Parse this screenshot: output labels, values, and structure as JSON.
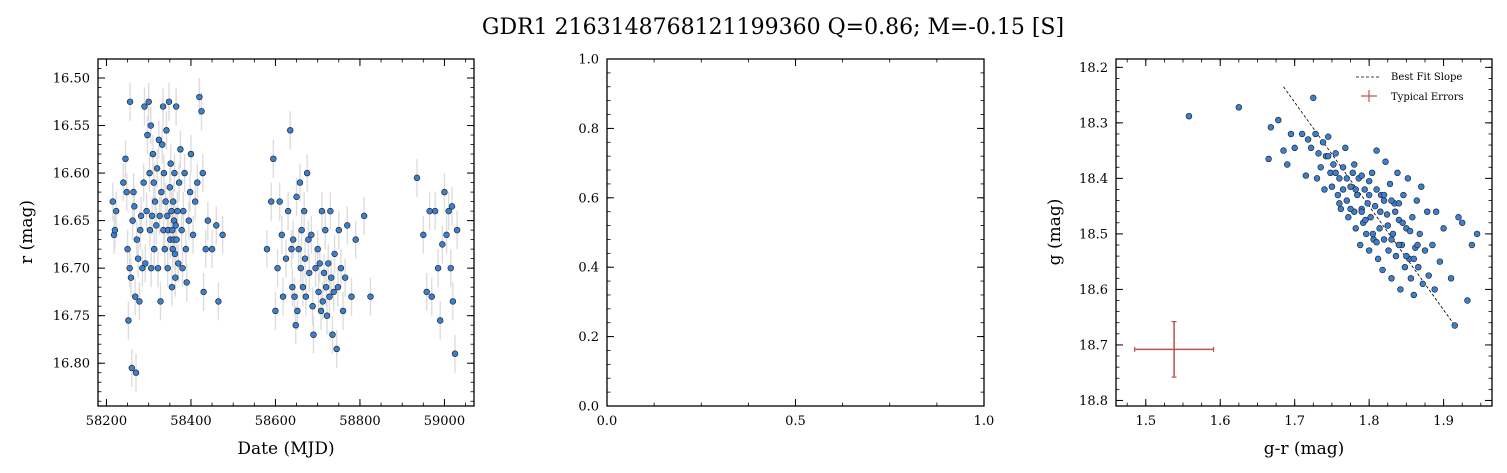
{
  "figure": {
    "title": "GDR1 2163148768121199360  Q=0.86; M=-0.15 [S]"
  },
  "chart_data": [
    {
      "type": "scatter",
      "panel": "lightcurve",
      "xlabel": "Date (MJD)",
      "ylabel": "r (mag)",
      "xlim": [
        58180,
        59070
      ],
      "ylim": [
        16.845,
        16.48
      ],
      "y_inverted": true,
      "xticks": [
        58200,
        58400,
        58600,
        58800,
        59000
      ],
      "xtick_labels": [
        "58200",
        "58400",
        "58600",
        "58800",
        "59000"
      ],
      "yticks": [
        16.5,
        16.55,
        16.6,
        16.65,
        16.7,
        16.75,
        16.8
      ],
      "ytick_labels": [
        "16.50",
        "16.55",
        "16.60",
        "16.65",
        "16.70",
        "16.75",
        "16.80"
      ],
      "marker_color": "#3b7fd0",
      "errorbar_color": "#dddddd",
      "grid": false,
      "points": [
        [
          58215,
          16.63
        ],
        [
          58218,
          16.665
        ],
        [
          58220,
          16.66
        ],
        [
          58223,
          16.64
        ],
        [
          58240,
          16.61
        ],
        [
          58245,
          16.585
        ],
        [
          58248,
          16.62
        ],
        [
          58250,
          16.68
        ],
        [
          58252,
          16.755
        ],
        [
          58255,
          16.7
        ],
        [
          58256,
          16.525
        ],
        [
          58258,
          16.71
        ],
        [
          58260,
          16.805
        ],
        [
          58262,
          16.65
        ],
        [
          58264,
          16.62
        ],
        [
          58266,
          16.635
        ],
        [
          58268,
          16.73
        ],
        [
          58270,
          16.81
        ],
        [
          58272,
          16.67
        ],
        [
          58275,
          16.69
        ],
        [
          58278,
          16.735
        ],
        [
          58280,
          16.66
        ],
        [
          58282,
          16.645
        ],
        [
          58285,
          16.7
        ],
        [
          58288,
          16.61
        ],
        [
          58290,
          16.53
        ],
        [
          58292,
          16.695
        ],
        [
          58295,
          16.64
        ],
        [
          58297,
          16.56
        ],
        [
          58300,
          16.525
        ],
        [
          58302,
          16.6
        ],
        [
          58303,
          16.66
        ],
        [
          58305,
          16.55
        ],
        [
          58306,
          16.7
        ],
        [
          58308,
          16.645
        ],
        [
          58310,
          16.58
        ],
        [
          58312,
          16.61
        ],
        [
          58313,
          16.68
        ],
        [
          58315,
          16.63
        ],
        [
          58318,
          16.655
        ],
        [
          58320,
          16.595
        ],
        [
          58322,
          16.7
        ],
        [
          58324,
          16.565
        ],
        [
          58326,
          16.645
        ],
        [
          58328,
          16.735
        ],
        [
          58330,
          16.62
        ],
        [
          58332,
          16.57
        ],
        [
          58334,
          16.53
        ],
        [
          58335,
          16.66
        ],
        [
          58336,
          16.6
        ],
        [
          58338,
          16.68
        ],
        [
          58340,
          16.63
        ],
        [
          58342,
          16.555
        ],
        [
          58344,
          16.645
        ],
        [
          58345,
          16.7
        ],
        [
          58346,
          16.66
        ],
        [
          58348,
          16.525
        ],
        [
          58350,
          16.615
        ],
        [
          58351,
          16.67
        ],
        [
          58352,
          16.59
        ],
        [
          58354,
          16.64
        ],
        [
          58355,
          16.72
        ],
        [
          58356,
          16.66
        ],
        [
          58357,
          16.68
        ],
        [
          58358,
          16.63
        ],
        [
          58359,
          16.67
        ],
        [
          58360,
          16.65
        ],
        [
          58361,
          16.6
        ],
        [
          58362,
          16.685
        ],
        [
          58363,
          16.71
        ],
        [
          58364,
          16.655
        ],
        [
          58365,
          16.53
        ],
        [
          58366,
          16.67
        ],
        [
          58368,
          16.64
        ],
        [
          58370,
          16.695
        ],
        [
          58372,
          16.61
        ],
        [
          58375,
          16.575
        ],
        [
          58378,
          16.66
        ],
        [
          58380,
          16.7
        ],
        [
          58382,
          16.64
        ],
        [
          58385,
          16.6
        ],
        [
          58388,
          16.68
        ],
        [
          58390,
          16.715
        ],
        [
          58395,
          16.65
        ],
        [
          58398,
          16.62
        ],
        [
          58400,
          16.58
        ],
        [
          58405,
          16.665
        ],
        [
          58410,
          16.63
        ],
        [
          58415,
          16.61
        ],
        [
          58420,
          16.52
        ],
        [
          58425,
          16.535
        ],
        [
          58428,
          16.6
        ],
        [
          58430,
          16.725
        ],
        [
          58435,
          16.68
        ],
        [
          58440,
          16.65
        ],
        [
          58450,
          16.68
        ],
        [
          58460,
          16.655
        ],
        [
          58465,
          16.735
        ],
        [
          58475,
          16.665
        ],
        [
          58580,
          16.68
        ],
        [
          58590,
          16.63
        ],
        [
          58595,
          16.585
        ],
        [
          58600,
          16.745
        ],
        [
          58605,
          16.7
        ],
        [
          58610,
          16.63
        ],
        [
          58615,
          16.665
        ],
        [
          58618,
          16.73
        ],
        [
          58625,
          16.69
        ],
        [
          58630,
          16.64
        ],
        [
          58635,
          16.555
        ],
        [
          58638,
          16.68
        ],
        [
          58640,
          16.72
        ],
        [
          58642,
          16.67
        ],
        [
          58645,
          16.73
        ],
        [
          58648,
          16.76
        ],
        [
          58650,
          16.625
        ],
        [
          58652,
          16.745
        ],
        [
          58655,
          16.68
        ],
        [
          58658,
          16.61
        ],
        [
          58660,
          16.7
        ],
        [
          58662,
          16.66
        ],
        [
          58665,
          16.72
        ],
        [
          58668,
          16.64
        ],
        [
          58670,
          16.69
        ],
        [
          58672,
          16.73
        ],
        [
          58675,
          16.6
        ],
        [
          58678,
          16.67
        ],
        [
          58680,
          16.705
        ],
        [
          58685,
          16.665
        ],
        [
          58688,
          16.74
        ],
        [
          58690,
          16.77
        ],
        [
          58695,
          16.7
        ],
        [
          58700,
          16.68
        ],
        [
          58702,
          16.725
        ],
        [
          58705,
          16.695
        ],
        [
          58708,
          16.745
        ],
        [
          58710,
          16.64
        ],
        [
          58712,
          16.735
        ],
        [
          58715,
          16.705
        ],
        [
          58718,
          16.66
        ],
        [
          58720,
          16.72
        ],
        [
          58722,
          16.75
        ],
        [
          58725,
          16.695
        ],
        [
          58728,
          16.73
        ],
        [
          58730,
          16.64
        ],
        [
          58732,
          16.71
        ],
        [
          58735,
          16.77
        ],
        [
          58738,
          16.725
        ],
        [
          58740,
          16.685
        ],
        [
          58745,
          16.785
        ],
        [
          58748,
          16.72
        ],
        [
          58750,
          16.66
        ],
        [
          58755,
          16.7
        ],
        [
          58760,
          16.745
        ],
        [
          58765,
          16.71
        ],
        [
          58770,
          16.655
        ],
        [
          58780,
          16.73
        ],
        [
          58790,
          16.67
        ],
        [
          58810,
          16.645
        ],
        [
          58825,
          16.73
        ],
        [
          58935,
          16.605
        ],
        [
          58950,
          16.665
        ],
        [
          58958,
          16.725
        ],
        [
          58965,
          16.64
        ],
        [
          58970,
          16.73
        ],
        [
          58978,
          16.64
        ],
        [
          58985,
          16.7
        ],
        [
          58990,
          16.755
        ],
        [
          58995,
          16.675
        ],
        [
          59000,
          16.62
        ],
        [
          59005,
          16.665
        ],
        [
          59010,
          16.64
        ],
        [
          59015,
          16.7
        ],
        [
          59018,
          16.635
        ],
        [
          59020,
          16.735
        ],
        [
          59025,
          16.79
        ],
        [
          59030,
          16.66
        ]
      ]
    },
    {
      "type": "scatter",
      "panel": "empty",
      "xlim": [
        0.0,
        1.0
      ],
      "ylim": [
        0.0,
        1.0
      ],
      "xticks": [
        0.0,
        0.5,
        1.0
      ],
      "xtick_labels": [
        "0.0",
        "0.5",
        "1.0"
      ],
      "yticks": [
        0.0,
        0.2,
        0.4,
        0.6,
        0.8,
        1.0
      ],
      "ytick_labels": [
        "0.0",
        "0.2",
        "0.4",
        "0.6",
        "0.8",
        "1.0"
      ],
      "points": []
    },
    {
      "type": "scatter",
      "panel": "color-magnitude",
      "xlabel": "g-r (mag)",
      "ylabel": "g (mag)",
      "xlim": [
        1.46,
        1.965
      ],
      "ylim": [
        18.81,
        18.185
      ],
      "y_inverted": true,
      "xticks": [
        1.5,
        1.6,
        1.7,
        1.8,
        1.9
      ],
      "xtick_labels": [
        "1.5",
        "1.6",
        "1.7",
        "1.8",
        "1.9"
      ],
      "yticks": [
        18.2,
        18.3,
        18.4,
        18.5,
        18.6,
        18.7,
        18.8
      ],
      "ytick_labels": [
        "18.2",
        "18.3",
        "18.4",
        "18.5",
        "18.6",
        "18.7",
        "18.8"
      ],
      "marker_color": "#3b7fd0",
      "legend": {
        "position": "upper-right",
        "entries": [
          "Best Fit Slope",
          "Typical Errors"
        ]
      },
      "best_fit_line": [
        [
          1.685,
          18.235
        ],
        [
          1.915,
          18.665
        ]
      ],
      "typical_error": {
        "x": 1.538,
        "y": 18.708,
        "xerr": 0.053,
        "yerr": 0.05,
        "color": "#c0504d"
      },
      "points": [
        [
          1.558,
          18.288
        ],
        [
          1.625,
          18.272
        ],
        [
          1.665,
          18.365
        ],
        [
          1.668,
          18.308
        ],
        [
          1.678,
          18.295
        ],
        [
          1.685,
          18.35
        ],
        [
          1.69,
          18.375
        ],
        [
          1.695,
          18.32
        ],
        [
          1.7,
          18.345
        ],
        [
          1.71,
          18.32
        ],
        [
          1.715,
          18.395
        ],
        [
          1.718,
          18.33
        ],
        [
          1.722,
          18.345
        ],
        [
          1.725,
          18.255
        ],
        [
          1.728,
          18.32
        ],
        [
          1.73,
          18.4
        ],
        [
          1.732,
          18.355
        ],
        [
          1.735,
          18.38
        ],
        [
          1.738,
          18.335
        ],
        [
          1.74,
          18.42
        ],
        [
          1.742,
          18.36
        ],
        [
          1.745,
          18.325
        ],
        [
          1.748,
          18.39
        ],
        [
          1.75,
          18.415
        ],
        [
          1.752,
          18.375
        ],
        [
          1.755,
          18.355
        ],
        [
          1.758,
          18.43
        ],
        [
          1.76,
          18.4
        ],
        [
          1.762,
          18.455
        ],
        [
          1.765,
          18.38
        ],
        [
          1.768,
          18.345
        ],
        [
          1.77,
          18.44
        ],
        [
          1.772,
          18.47
        ],
        [
          1.775,
          18.415
        ],
        [
          1.778,
          18.39
        ],
        [
          1.78,
          18.46
        ],
        [
          1.782,
          18.49
        ],
        [
          1.784,
          18.43
        ],
        [
          1.786,
          18.4
        ],
        [
          1.788,
          18.52
        ],
        [
          1.79,
          18.455
        ],
        [
          1.792,
          18.48
        ],
        [
          1.794,
          18.42
        ],
        [
          1.796,
          18.5
        ],
        [
          1.798,
          18.445
        ],
        [
          1.8,
          18.53
        ],
        [
          1.802,
          18.47
        ],
        [
          1.804,
          18.39
        ],
        [
          1.806,
          18.51
        ],
        [
          1.808,
          18.45
        ],
        [
          1.81,
          18.35
        ],
        [
          1.812,
          18.545
        ],
        [
          1.814,
          18.49
        ],
        [
          1.816,
          18.43
        ],
        [
          1.818,
          18.565
        ],
        [
          1.82,
          18.51
        ],
        [
          1.822,
          18.37
        ],
        [
          1.824,
          18.465
        ],
        [
          1.826,
          18.53
        ],
        [
          1.828,
          18.41
        ],
        [
          1.83,
          18.58
        ],
        [
          1.832,
          18.5
        ],
        [
          1.834,
          18.445
        ],
        [
          1.836,
          18.54
        ],
        [
          1.838,
          18.39
        ],
        [
          1.84,
          18.475
        ],
        [
          1.842,
          18.6
        ],
        [
          1.844,
          18.52
        ],
        [
          1.846,
          18.43
        ],
        [
          1.848,
          18.56
        ],
        [
          1.85,
          18.49
        ],
        [
          1.852,
          18.4
        ],
        [
          1.854,
          18.545
        ],
        [
          1.856,
          18.58
        ],
        [
          1.858,
          18.47
        ],
        [
          1.86,
          18.61
        ],
        [
          1.862,
          18.525
        ],
        [
          1.864,
          18.44
        ],
        [
          1.866,
          18.56
        ],
        [
          1.868,
          18.5
        ],
        [
          1.87,
          18.415
        ],
        [
          1.872,
          18.59
        ],
        [
          1.875,
          18.53
        ],
        [
          1.878,
          18.46
        ],
        [
          1.88,
          18.575
        ],
        [
          1.885,
          18.52
        ],
        [
          1.888,
          18.6
        ],
        [
          1.89,
          18.46
        ],
        [
          1.895,
          18.55
        ],
        [
          1.9,
          18.49
        ],
        [
          1.91,
          18.58
        ],
        [
          1.915,
          18.665
        ],
        [
          1.92,
          18.47
        ],
        [
          1.925,
          18.48
        ],
        [
          1.932,
          18.62
        ],
        [
          1.938,
          18.52
        ],
        [
          1.945,
          18.5
        ],
        [
          1.76,
          18.445
        ],
        [
          1.775,
          18.455
        ],
        [
          1.79,
          18.46
        ],
        [
          1.8,
          18.43
        ],
        [
          1.815,
          18.46
        ],
        [
          1.825,
          18.485
        ],
        [
          1.83,
          18.51
        ],
        [
          1.84,
          18.52
        ],
        [
          1.85,
          18.54
        ],
        [
          1.86,
          18.545
        ],
        [
          1.77,
          18.4
        ],
        [
          1.782,
          18.42
        ],
        [
          1.795,
          18.475
        ],
        [
          1.805,
          18.5
        ],
        [
          1.81,
          18.515
        ],
        [
          1.82,
          18.44
        ],
        [
          1.835,
          18.46
        ],
        [
          1.845,
          18.48
        ],
        [
          1.855,
          18.495
        ],
        [
          1.865,
          18.52
        ],
        [
          1.745,
          18.36
        ],
        [
          1.755,
          18.39
        ],
        [
          1.765,
          18.42
        ],
        [
          1.78,
          18.375
        ],
        [
          1.79,
          18.395
        ],
        [
          1.8,
          18.405
        ],
        [
          1.81,
          18.42
        ],
        [
          1.82,
          18.43
        ],
        [
          1.83,
          18.44
        ],
        [
          1.84,
          18.445
        ]
      ]
    }
  ]
}
